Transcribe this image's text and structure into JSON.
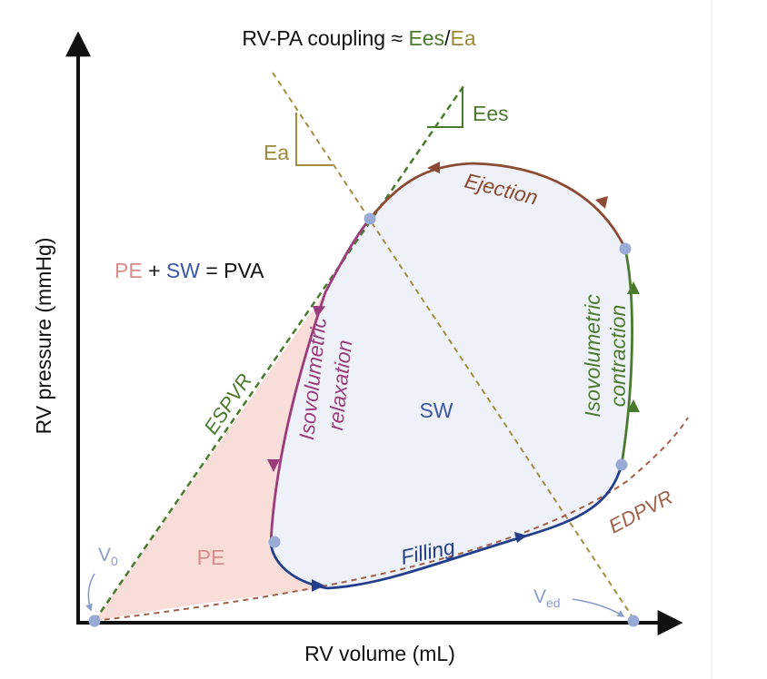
{
  "title": {
    "prefix": "RV-PA coupling ≈ ",
    "ees": "Ees",
    "slash": "/",
    "ea": "Ea"
  },
  "axes": {
    "x_label": "RV volume (mL)",
    "y_label": "RV pressure (mmHg)"
  },
  "equation": {
    "pe": "PE",
    "plus": " + ",
    "sw": "SW",
    "rest": " = PVA"
  },
  "labels": {
    "ees": "Ees",
    "ea": "Ea",
    "ejection": "Ejection",
    "iso_contraction": "Isovolumetric",
    "iso_contraction_2": "contraction",
    "iso_relaxation": "Isovolumetric",
    "iso_relaxation_2": "relaxation",
    "sw": "SW",
    "pe": "PE",
    "filling": "Filling",
    "espvr": "ESPVR",
    "edpvr": "EDPVR",
    "v0": "V",
    "v0_sub": "0",
    "ved": "V",
    "ved_sub": "ed"
  },
  "colors": {
    "green": "#4a7a2e",
    "olive": "#9c8a3c",
    "brown": "#8b4a32",
    "purple": "#9b3d7c",
    "navy": "#233f8c",
    "pink": "#d98c8c",
    "pe_fill": "#f7d9d4",
    "loop_fill": "#edf0f8",
    "point": "#9aaad6",
    "axis": "#111111"
  }
}
